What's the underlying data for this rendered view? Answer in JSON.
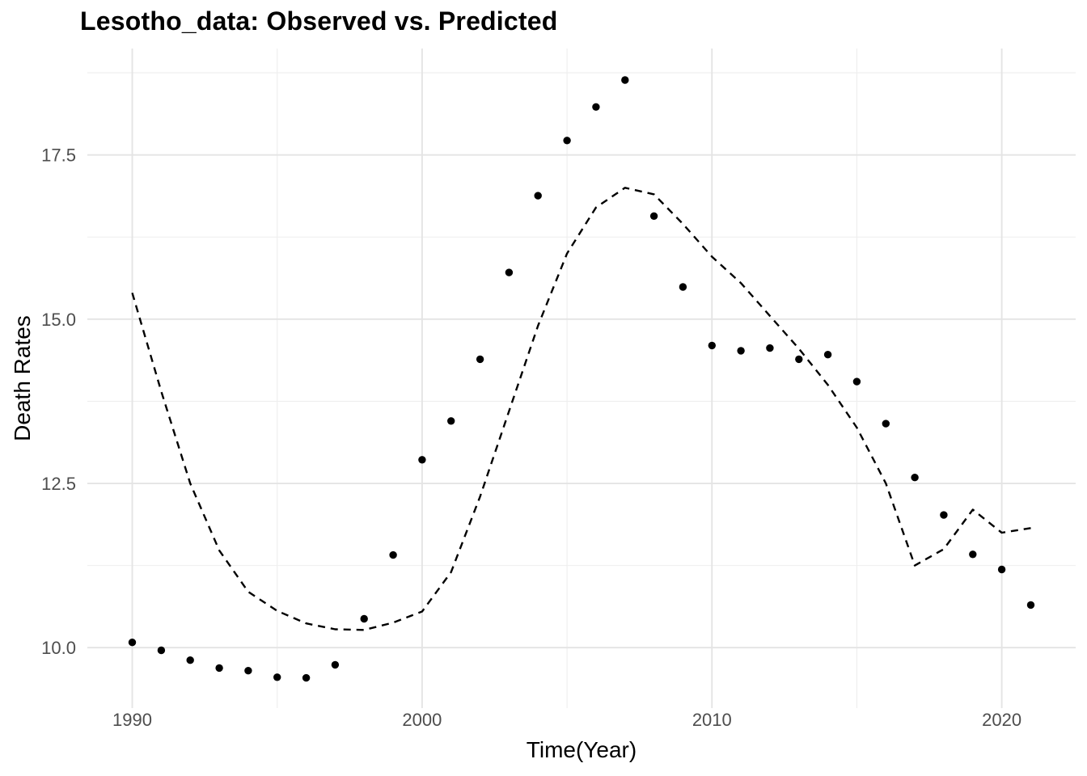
{
  "chart_data": {
    "type": "scatter",
    "title": "Lesotho_data: Observed vs. Predicted",
    "xlabel": "Time(Year)",
    "ylabel": "Death Rates",
    "x": [
      1990,
      1991,
      1992,
      1993,
      1994,
      1995,
      1996,
      1997,
      1998,
      1999,
      2000,
      2001,
      2002,
      2003,
      2004,
      2005,
      2006,
      2007,
      2008,
      2009,
      2010,
      2011,
      2012,
      2013,
      2014,
      2015,
      2016,
      2017,
      2018,
      2019,
      2020,
      2021
    ],
    "series": [
      {
        "name": "Observed",
        "style": "points",
        "values": [
          10.08,
          9.96,
          9.81,
          9.69,
          9.65,
          9.55,
          9.54,
          9.74,
          10.44,
          11.41,
          12.86,
          13.45,
          14.39,
          15.71,
          16.88,
          17.72,
          18.23,
          18.64,
          16.57,
          15.49,
          14.6,
          14.52,
          14.56,
          14.39,
          14.46,
          14.05,
          13.41,
          12.59,
          12.02,
          11.42,
          11.19,
          10.65
        ]
      },
      {
        "name": "Predicted",
        "style": "dashed-line",
        "values": [
          15.4,
          13.9,
          12.5,
          11.48,
          10.85,
          10.56,
          10.37,
          10.28,
          10.27,
          10.38,
          10.55,
          11.15,
          12.3,
          13.6,
          14.9,
          16.0,
          16.7,
          17.0,
          16.9,
          16.45,
          15.95,
          15.55,
          15.05,
          14.55,
          14.0,
          13.35,
          12.5,
          11.25,
          11.5,
          12.1,
          11.75,
          11.82
        ]
      }
    ],
    "xlim": [
      1988.45,
      2022.55
    ],
    "ylim": [
      9.08,
      19.12
    ],
    "x_ticks": {
      "values": [
        1990,
        2000,
        2010,
        2020
      ],
      "labels": [
        "1990",
        "2000",
        "2010",
        "2020"
      ],
      "minor": [
        1995,
        2005,
        2015
      ]
    },
    "y_ticks": {
      "values": [
        10.0,
        12.5,
        15.0,
        17.5
      ],
      "labels": [
        "10.0",
        "12.5",
        "15.0",
        "17.5"
      ],
      "minor": [
        11.25,
        13.75,
        16.25,
        18.75
      ]
    },
    "grid": "on",
    "legend": "none",
    "colors": {
      "background": "#ffffff",
      "grid_major": "#e4e4e4",
      "grid_minor": "#eeeeee",
      "tick_label": "#4d4d4d",
      "axis_title": "#000000",
      "title": "#000000",
      "point": "#000000",
      "line": "#000000"
    }
  }
}
